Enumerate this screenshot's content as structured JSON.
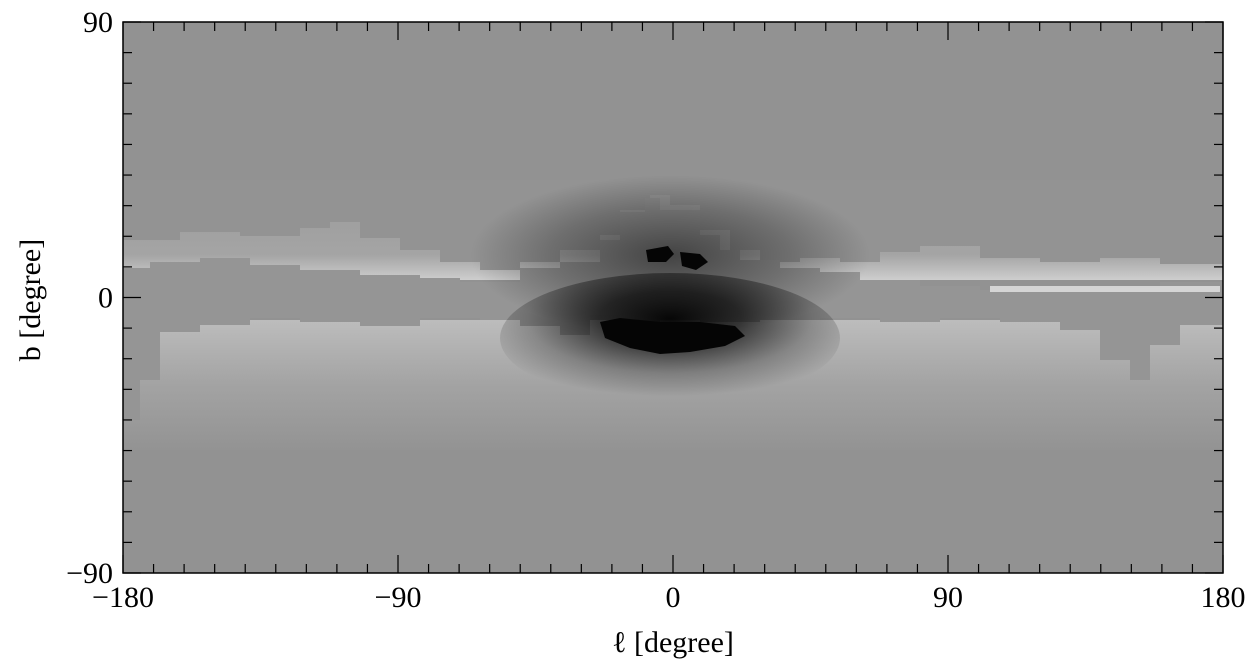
{
  "chart_data": {
    "type": "heatmap",
    "colormap": "grayscale",
    "xlabel": "ℓ [degree]",
    "ylabel": "b [degree]",
    "xlim": [
      -180,
      180
    ],
    "ylim": [
      -90,
      90
    ],
    "x_ticks": [
      -180,
      -90,
      0,
      90,
      180
    ],
    "y_ticks": [
      -90,
      0,
      90
    ],
    "x_tick_labels": [
      "−180",
      "−90",
      "0",
      "90",
      "180"
    ],
    "y_tick_labels": [
      "−90",
      "0",
      "90"
    ],
    "grid": false,
    "features": {
      "background_level": 0.57,
      "disk_band_b": [
        -8,
        6
      ],
      "disk_band_level": 0.57,
      "bulge_center": [
        0,
        -8
      ],
      "bulge_dark_extent_l": [
        -60,
        60
      ],
      "bulge_dark_extent_b": [
        -20,
        25
      ]
    }
  }
}
